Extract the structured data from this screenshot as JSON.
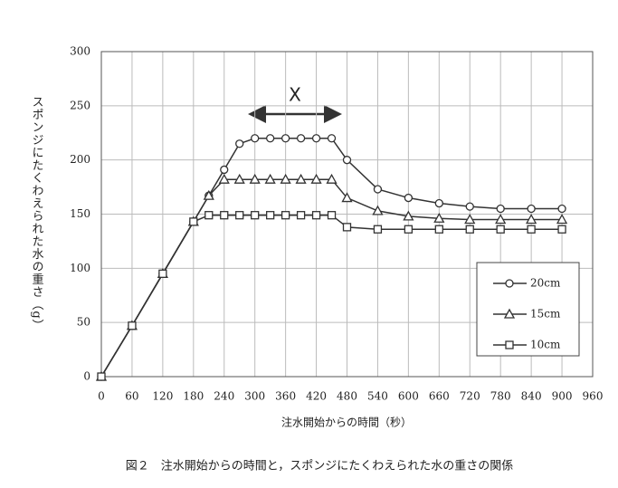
{
  "chart_data": {
    "type": "line",
    "xlabel": "注水開始からの時間（秒）",
    "ylabel": "スポンジにたくわえられた水の重さ（g）",
    "caption": "図２　注水開始からの時間と，スポンジにたくわえられた水の重さの関係",
    "annotation": "X",
    "xlim": [
      0,
      960
    ],
    "xticks": [
      0,
      60,
      120,
      180,
      240,
      300,
      360,
      420,
      480,
      540,
      600,
      660,
      720,
      780,
      840,
      900,
      960
    ],
    "ylim": [
      0,
      300
    ],
    "yticks": [
      0,
      50,
      100,
      150,
      200,
      250,
      300
    ],
    "grid": true,
    "legend": "lower right",
    "series": [
      {
        "name": "20cm",
        "color": "#333333",
        "marker": "circle",
        "x": [
          0,
          60,
          120,
          180,
          210,
          240,
          270,
          300,
          330,
          360,
          390,
          420,
          450,
          480,
          540,
          600,
          660,
          720,
          780,
          840,
          900
        ],
        "values": [
          0,
          47,
          95,
          143,
          167,
          191,
          215,
          220,
          220,
          220,
          220,
          220,
          220,
          200,
          173,
          165,
          160,
          157,
          155,
          155,
          155
        ]
      },
      {
        "name": "15cm",
        "color": "#333333",
        "marker": "triangle",
        "x": [
          0,
          60,
          120,
          180,
          210,
          240,
          270,
          300,
          330,
          360,
          390,
          420,
          450,
          480,
          540,
          600,
          660,
          720,
          780,
          840,
          900
        ],
        "values": [
          0,
          47,
          95,
          143,
          167,
          182,
          182,
          182,
          182,
          182,
          182,
          182,
          182,
          165,
          153,
          148,
          146,
          145,
          145,
          145,
          145
        ]
      },
      {
        "name": "10cm",
        "color": "#333333",
        "marker": "square",
        "x": [
          0,
          60,
          120,
          180,
          210,
          240,
          270,
          300,
          330,
          360,
          390,
          420,
          450,
          480,
          540,
          600,
          660,
          720,
          780,
          840,
          900
        ],
        "values": [
          0,
          47,
          95,
          143,
          149,
          149,
          149,
          149,
          149,
          149,
          149,
          149,
          149,
          138,
          136,
          136,
          136,
          136,
          136,
          136,
          136
        ]
      }
    ]
  }
}
